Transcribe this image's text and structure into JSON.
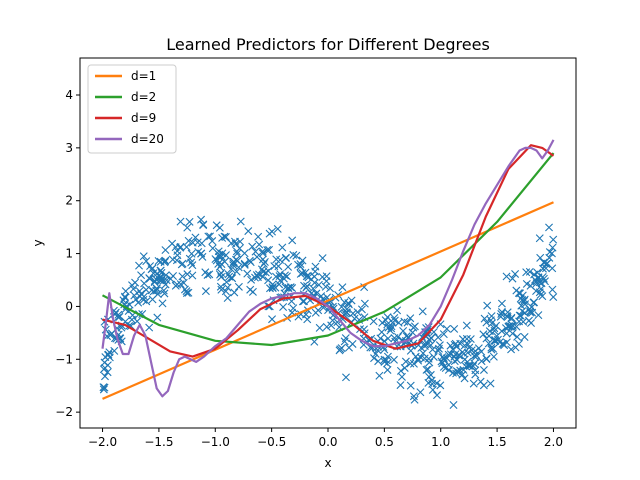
{
  "chart_data": {
    "type": "scatter",
    "title": "Learned Predictors for Different Degrees",
    "xlabel": "x",
    "ylabel": "y",
    "xlim": [
      -2.2,
      2.2
    ],
    "ylim": [
      -2.3,
      4.7
    ],
    "xticks": [
      -2.0,
      -1.5,
      -1.0,
      -0.5,
      0.0,
      0.5,
      1.0,
      1.5,
      2.0
    ],
    "xtick_labels": [
      "−2.0",
      "−1.5",
      "−1.0",
      "−0.5",
      "0.0",
      "0.5",
      "1.0",
      "1.5",
      "2.0"
    ],
    "yticks": [
      -2,
      -1,
      0,
      1,
      2,
      3,
      4
    ],
    "ytick_labels": [
      "−2",
      "−1",
      "0",
      "1",
      "2",
      "3",
      "4"
    ],
    "grid": false,
    "legend_position": "top-left",
    "scatter": {
      "marker": "x",
      "color": "#1f77b4",
      "x_range": [
        -2.0,
        2.0
      ],
      "count": 700,
      "trend": "0.5*x^3 - 1.5*x + noise (std ~0.35)"
    },
    "series": [
      {
        "name": "d=1",
        "color": "#ff7f0e",
        "x": [
          -2.0,
          2.0
        ],
        "y": [
          -1.75,
          1.97
        ]
      },
      {
        "name": "d=2",
        "color": "#2ca02c",
        "x": [
          -2.0,
          -1.5,
          -1.0,
          -0.5,
          0.0,
          0.5,
          1.0,
          1.5,
          2.0
        ],
        "y": [
          0.21,
          -0.35,
          -0.65,
          -0.73,
          -0.55,
          -0.1,
          0.55,
          1.6,
          2.9
        ]
      },
      {
        "name": "d=9",
        "color": "#d62728",
        "x": [
          -2.0,
          -1.8,
          -1.6,
          -1.4,
          -1.2,
          -1.0,
          -0.8,
          -0.6,
          -0.4,
          -0.2,
          0.0,
          0.2,
          0.4,
          0.6,
          0.8,
          1.0,
          1.2,
          1.4,
          1.6,
          1.8,
          1.9,
          2.0
        ],
        "y": [
          -0.25,
          -0.35,
          -0.6,
          -0.85,
          -0.95,
          -0.8,
          -0.45,
          -0.05,
          0.15,
          0.2,
          0.0,
          -0.3,
          -0.65,
          -0.8,
          -0.7,
          -0.25,
          0.6,
          1.7,
          2.6,
          3.05,
          3.0,
          2.85
        ]
      },
      {
        "name": "d=20",
        "color": "#9467bd",
        "x": [
          -2.0,
          -1.97,
          -1.94,
          -1.91,
          -1.87,
          -1.82,
          -1.77,
          -1.72,
          -1.67,
          -1.62,
          -1.57,
          -1.52,
          -1.47,
          -1.42,
          -1.37,
          -1.32,
          -1.27,
          -1.22,
          -1.17,
          -1.1,
          -1.0,
          -0.9,
          -0.8,
          -0.7,
          -0.6,
          -0.5,
          -0.4,
          -0.3,
          -0.2,
          -0.1,
          0.0,
          0.1,
          0.2,
          0.3,
          0.4,
          0.5,
          0.6,
          0.7,
          0.8,
          0.9,
          1.0,
          1.1,
          1.2,
          1.3,
          1.4,
          1.5,
          1.6,
          1.7,
          1.75,
          1.8,
          1.85,
          1.9,
          1.95,
          2.0
        ],
        "y": [
          -0.8,
          -0.3,
          0.25,
          -0.2,
          -0.6,
          -0.9,
          -0.9,
          -0.55,
          -0.35,
          -0.55,
          -1.05,
          -1.55,
          -1.7,
          -1.6,
          -1.25,
          -1.0,
          -0.95,
          -1.0,
          -1.05,
          -0.95,
          -0.75,
          -0.6,
          -0.35,
          -0.1,
          0.05,
          0.15,
          0.2,
          0.25,
          0.25,
          0.15,
          0.0,
          -0.25,
          -0.5,
          -0.65,
          -0.75,
          -0.75,
          -0.7,
          -0.65,
          -0.55,
          -0.35,
          0.0,
          0.5,
          1.05,
          1.55,
          1.95,
          2.3,
          2.65,
          2.95,
          3.0,
          3.0,
          2.95,
          2.8,
          2.95,
          3.15
        ]
      }
    ]
  }
}
